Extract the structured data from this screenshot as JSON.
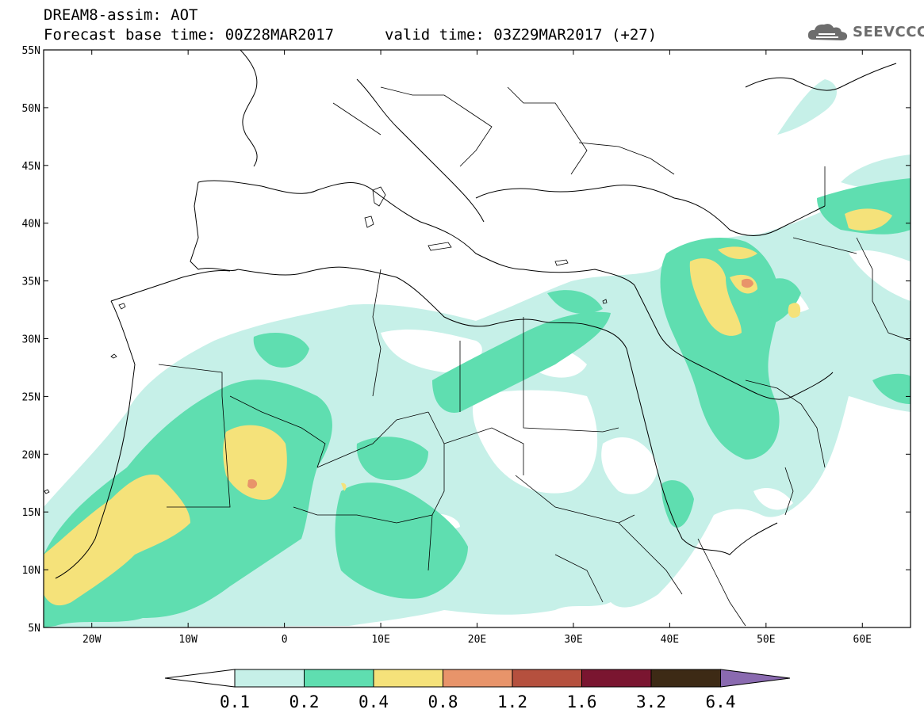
{
  "title": {
    "line1": "DREAM8-assim: AOT",
    "line2": "Forecast base time: 00Z28MAR2017",
    "valid": "valid time: 03Z29MAR2017 (+27)"
  },
  "logo": {
    "text": "SEEVCCC",
    "icon": "cloud-icon"
  },
  "axes": {
    "lat_labels": [
      "55N",
      "50N",
      "45N",
      "40N",
      "35N",
      "30N",
      "25N",
      "20N",
      "15N",
      "10N",
      "5N"
    ],
    "lon_labels": [
      "20W",
      "10W",
      "0",
      "10E",
      "20E",
      "30E",
      "40E",
      "50E",
      "60E"
    ],
    "lat_range": [
      5,
      55
    ],
    "lon_range": [
      -25,
      65
    ]
  },
  "colorbar": {
    "labels": [
      "0.1",
      "0.2",
      "0.4",
      "0.8",
      "1.2",
      "1.6",
      "3.2",
      "6.4"
    ],
    "colors": [
      "#ffffff",
      "#c6f0e8",
      "#5fdeb0",
      "#f5e27a",
      "#e8946a",
      "#b5503e",
      "#7a1530",
      "#3d2a15",
      "#8a6ab0"
    ]
  },
  "legend_levels": [
    {
      "range": "0.1-0.2",
      "color": "#c6f0e8"
    },
    {
      "range": "0.2-0.4",
      "color": "#5fdeb0"
    },
    {
      "range": "0.4-0.8",
      "color": "#f5e27a"
    },
    {
      "range": "0.8-1.2",
      "color": "#e8946a"
    }
  ]
}
